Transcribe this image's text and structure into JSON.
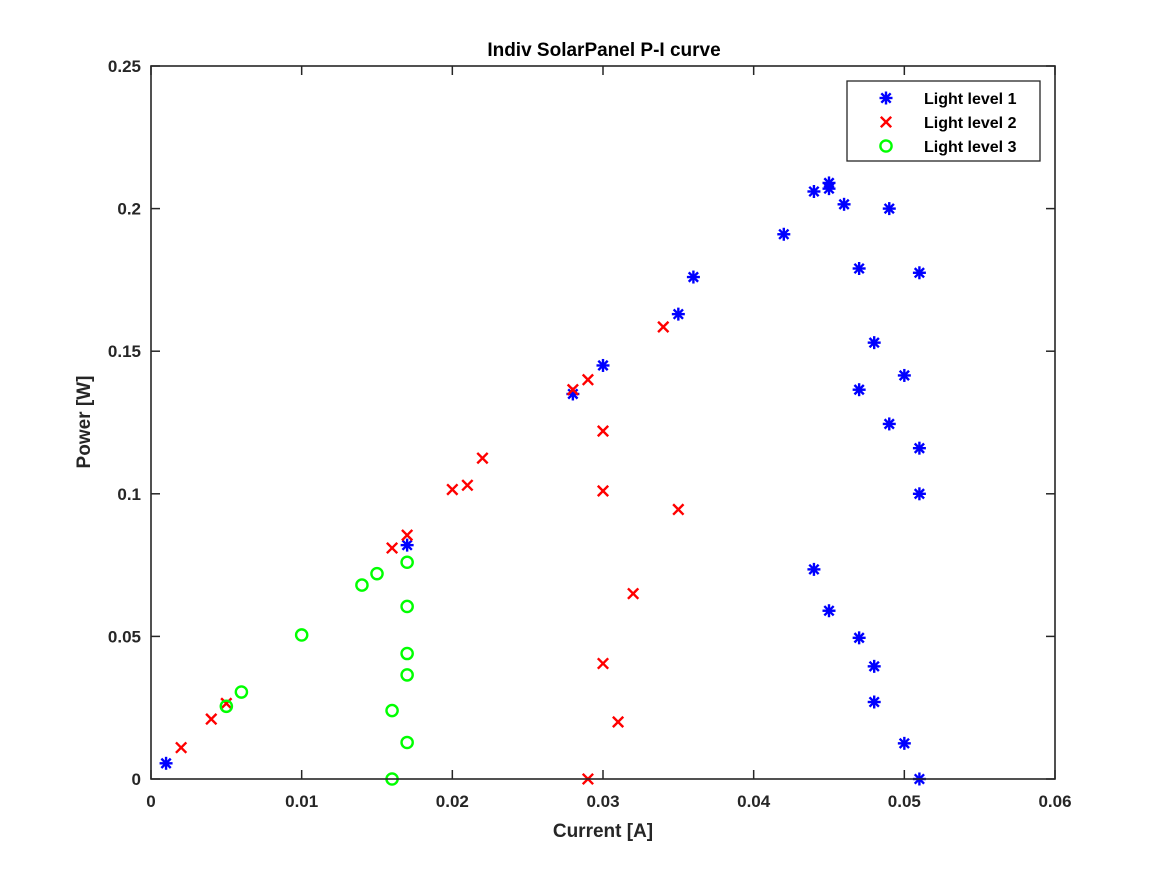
{
  "chart_data": {
    "type": "scatter",
    "title": "Indiv SolarPanel P-I curve",
    "xlabel": "Current [A]",
    "ylabel": "Power [W]",
    "xlim": [
      0,
      0.06
    ],
    "ylim": [
      0,
      0.25
    ],
    "xticks": [
      0,
      0.01,
      0.02,
      0.03,
      0.04,
      0.05,
      0.06
    ],
    "xtick_labels": [
      "0",
      "0.01",
      "0.02",
      "0.03",
      "0.04",
      "0.05",
      "0.06"
    ],
    "yticks": [
      0,
      0.05,
      0.1,
      0.15,
      0.2,
      0.25
    ],
    "ytick_labels": [
      "0",
      "0.05",
      "0.1",
      "0.15",
      "0.2",
      "0.25"
    ],
    "grid": false,
    "legend_position": "top-right",
    "series": [
      {
        "name": "Light level 1",
        "marker": "asterisk",
        "color": "#0000ff",
        "points": [
          [
            0.001,
            0.0055
          ],
          [
            0.017,
            0.082
          ],
          [
            0.028,
            0.135
          ],
          [
            0.03,
            0.145
          ],
          [
            0.035,
            0.163
          ],
          [
            0.036,
            0.176
          ],
          [
            0.042,
            0.191
          ],
          [
            0.044,
            0.206
          ],
          [
            0.045,
            0.209
          ],
          [
            0.045,
            0.207
          ],
          [
            0.046,
            0.2015
          ],
          [
            0.049,
            0.2
          ],
          [
            0.047,
            0.179
          ],
          [
            0.051,
            0.1775
          ],
          [
            0.048,
            0.153
          ],
          [
            0.05,
            0.1415
          ],
          [
            0.047,
            0.1365
          ],
          [
            0.049,
            0.1245
          ],
          [
            0.051,
            0.116
          ],
          [
            0.051,
            0.1
          ],
          [
            0.044,
            0.0735
          ],
          [
            0.045,
            0.059
          ],
          [
            0.047,
            0.0495
          ],
          [
            0.048,
            0.0395
          ],
          [
            0.048,
            0.027
          ],
          [
            0.05,
            0.0125
          ],
          [
            0.051,
            0.0
          ]
        ]
      },
      {
        "name": "Light level 2",
        "marker": "x",
        "color": "#ff0000",
        "points": [
          [
            0.002,
            0.011
          ],
          [
            0.004,
            0.021
          ],
          [
            0.005,
            0.0265
          ],
          [
            0.016,
            0.081
          ],
          [
            0.017,
            0.0855
          ],
          [
            0.02,
            0.1015
          ],
          [
            0.021,
            0.103
          ],
          [
            0.022,
            0.1125
          ],
          [
            0.028,
            0.1365
          ],
          [
            0.029,
            0.14
          ],
          [
            0.034,
            0.1585
          ],
          [
            0.03,
            0.122
          ],
          [
            0.03,
            0.101
          ],
          [
            0.035,
            0.0945
          ],
          [
            0.032,
            0.065
          ],
          [
            0.03,
            0.0405
          ],
          [
            0.031,
            0.02
          ],
          [
            0.029,
            0.0
          ]
        ]
      },
      {
        "name": "Light level 3",
        "marker": "circle",
        "color": "#00ff00",
        "points": [
          [
            0.005,
            0.0255
          ],
          [
            0.006,
            0.0305
          ],
          [
            0.01,
            0.0505
          ],
          [
            0.014,
            0.068
          ],
          [
            0.015,
            0.072
          ],
          [
            0.017,
            0.076
          ],
          [
            0.017,
            0.0605
          ],
          [
            0.017,
            0.044
          ],
          [
            0.017,
            0.0365
          ],
          [
            0.016,
            0.024
          ],
          [
            0.017,
            0.0128
          ],
          [
            0.016,
            0.0
          ]
        ]
      }
    ]
  }
}
